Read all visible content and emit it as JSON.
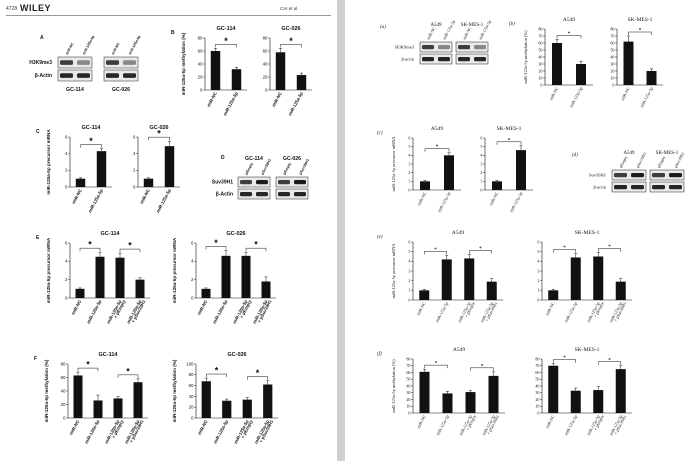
{
  "left_page": {
    "page_number": "4728",
    "publisher": "WILEY",
    "running_head": "CAI et al."
  },
  "colors": {
    "bar": "#111111",
    "page": "#ffffff",
    "gutter": "#d0d0d0"
  },
  "chart_data": [
    {
      "id": "L-C1",
      "type": "bar",
      "panel": "C",
      "title": "GC-114",
      "ylabel": "miR-125a-5p precursor mRNA",
      "categories": [
        "miR-NC",
        "miR-125a-5p"
      ],
      "values": [
        1.0,
        4.3
      ],
      "errors": [
        0.1,
        0.3
      ],
      "ylim": [
        0,
        6
      ],
      "yticks": [
        0,
        2,
        4,
        6
      ],
      "sig": [
        [
          "miR-NC",
          "miR-125a-5p",
          "*"
        ]
      ]
    },
    {
      "id": "L-C2",
      "type": "bar",
      "panel": "",
      "title": "GC-026",
      "ylabel": "",
      "categories": [
        "miR-NC",
        "miR-125a-5p"
      ],
      "values": [
        1.0,
        4.9
      ],
      "errors": [
        0.1,
        0.6
      ],
      "ylim": [
        0,
        6
      ],
      "yticks": [
        0,
        2,
        4,
        6
      ],
      "sig": [
        [
          "miR-NC",
          "miR-125a-5p",
          "*"
        ]
      ]
    },
    {
      "id": "L-B1",
      "type": "bar",
      "panel": "B",
      "title": "GC-114",
      "ylabel": "miR-125a-5p methylation (%)",
      "categories": [
        "miR-NC",
        "miR-125a-5p"
      ],
      "values": [
        60,
        32
      ],
      "errors": [
        4,
        3
      ],
      "ylim": [
        0,
        80
      ],
      "yticks": [
        0,
        20,
        40,
        60,
        80
      ],
      "sig": [
        [
          "miR-NC",
          "miR-125a-5p",
          "*"
        ]
      ]
    },
    {
      "id": "L-B2",
      "type": "bar",
      "panel": "",
      "title": "GC-026",
      "ylabel": "",
      "categories": [
        "miR-NC",
        "miR-125a-5p"
      ],
      "values": [
        58,
        23
      ],
      "errors": [
        6,
        3
      ],
      "ylim": [
        0,
        80
      ],
      "yticks": [
        0,
        20,
        40,
        60,
        80
      ],
      "sig": [
        [
          "miR-NC",
          "miR-125a-5p",
          "*"
        ]
      ]
    },
    {
      "id": "L-E1",
      "type": "bar",
      "panel": "E",
      "title": "GC-114",
      "ylabel": "miR-125a-5p precursor mRNA",
      "categories": [
        "miR-NC",
        "miR-125a-5p",
        "miR-125a-5p + pEmpty",
        "miR-125a-5p + pSuv39H1"
      ],
      "values": [
        1.0,
        4.5,
        4.4,
        2.0
      ],
      "errors": [
        0.1,
        0.5,
        0.5,
        0.2
      ],
      "ylim": [
        0,
        6
      ],
      "yticks": [
        0,
        2,
        4,
        6
      ],
      "sig": [
        [
          "miR-NC",
          "miR-125a-5p",
          "*"
        ],
        [
          "miR-125a-5p + pEmpty",
          "miR-125a-5p + pSuv39H1",
          "*"
        ]
      ]
    },
    {
      "id": "L-E2",
      "type": "bar",
      "panel": "",
      "title": "GC-026",
      "ylabel": "miR-125a-5p precursor mRNA",
      "categories": [
        "miR-NC",
        "miR-125a-5p",
        "miR-125a-5p + pEmpty",
        "miR-125a-5p + pSuv39H1"
      ],
      "values": [
        1.0,
        4.6,
        4.6,
        1.8
      ],
      "errors": [
        0.1,
        0.6,
        0.4,
        0.5
      ],
      "ylim": [
        0,
        6
      ],
      "yticks": [
        0,
        2,
        4,
        6
      ],
      "sig": [
        [
          "miR-NC",
          "miR-125a-5p",
          "*"
        ],
        [
          "miR-125a-5p + pEmpty",
          "miR-125a-5p + pSuv39H1",
          "*"
        ]
      ]
    },
    {
      "id": "L-F1",
      "type": "bar",
      "panel": "F",
      "title": "GC-114",
      "ylabel": "miR-125a-5p methylation (%)",
      "categories": [
        "miR-NC",
        "miR-125a-5p",
        "miR-125a-5p + pEmpty",
        "miR-125a-5p + pSuv39H1"
      ],
      "values": [
        63,
        26,
        29,
        53
      ],
      "errors": [
        5,
        8,
        3,
        5
      ],
      "ylim": [
        0,
        80
      ],
      "yticks": [
        0,
        20,
        40,
        60,
        80
      ],
      "sig": [
        [
          "miR-NC",
          "miR-125a-5p",
          "*"
        ],
        [
          "miR-125a-5p + pEmpty",
          "miR-125a-5p + pSuv39H1",
          "*"
        ]
      ]
    },
    {
      "id": "L-F2",
      "type": "bar",
      "panel": "",
      "title": "GC-026",
      "ylabel": "miR-125a-5p methylation (%)",
      "categories": [
        "miR-NC",
        "miR-125a-5p",
        "miR-125a-5p + pEmpty",
        "miR-125a-5p + pSuv39H1"
      ],
      "values": [
        68,
        32,
        34,
        62
      ],
      "errors": [
        6,
        3,
        4,
        7
      ],
      "ylim": [
        0,
        100
      ],
      "yticks": [
        0,
        20,
        40,
        60,
        80,
        100
      ],
      "sig": [
        [
          "miR-NC",
          "miR-125a-5p",
          "*"
        ],
        [
          "miR-125a-5p + pEmpty",
          "miR-125a-5p + pSuv39H1",
          "*"
        ]
      ]
    },
    {
      "id": "R-b1",
      "type": "bar",
      "panel": "(b)",
      "title": "A549",
      "ylabel": "miR-125a-5p methylation (%)",
      "categories": [
        "miR-NC",
        "miR-125a-5p"
      ],
      "values": [
        60,
        30
      ],
      "errors": [
        5,
        4
      ],
      "ylim": [
        0,
        80
      ],
      "yticks": [
        0,
        10,
        20,
        30,
        40,
        50,
        60,
        70,
        80
      ],
      "sig": [
        [
          "miR-NC",
          "miR-125a-5p",
          "*"
        ]
      ]
    },
    {
      "id": "R-b2",
      "type": "bar",
      "panel": "",
      "title": "SK-MES-1",
      "ylabel": "",
      "categories": [
        "miR-NC",
        "miR-125a-5p"
      ],
      "values": [
        62,
        20
      ],
      "errors": [
        8,
        3
      ],
      "ylim": [
        0,
        80
      ],
      "yticks": [
        0,
        10,
        20,
        30,
        40,
        50,
        60,
        70,
        80
      ],
      "sig": [
        [
          "miR-NC",
          "miR-125a-5p",
          "*"
        ]
      ]
    },
    {
      "id": "R-c1",
      "type": "bar",
      "panel": "(c)",
      "title": "A549",
      "ylabel": "miR-125a-5p precursor mRNA",
      "categories": [
        "miR-NC",
        "miR-125a-5p"
      ],
      "values": [
        1.0,
        4.0
      ],
      "errors": [
        0.1,
        0.3
      ],
      "ylim": [
        0,
        6
      ],
      "yticks": [
        0,
        1,
        2,
        3,
        4,
        5,
        6
      ],
      "sig": [
        [
          "miR-NC",
          "miR-125a-5p",
          "*"
        ]
      ]
    },
    {
      "id": "R-c2",
      "type": "bar",
      "panel": "",
      "title": "SK-MES-1",
      "ylabel": "",
      "categories": [
        "miR-NC",
        "miR-125a-5p"
      ],
      "values": [
        1.0,
        4.6
      ],
      "errors": [
        0.1,
        0.5
      ],
      "ylim": [
        0,
        6
      ],
      "yticks": [
        0,
        1,
        2,
        3,
        4,
        5,
        6
      ],
      "sig": [
        [
          "miR-NC",
          "miR-125a-5p",
          "*"
        ]
      ]
    },
    {
      "id": "R-e1",
      "type": "bar",
      "panel": "(e)",
      "title": "A549",
      "ylabel": "miR-125a-5p precursor mRNA",
      "categories": [
        "miR-NC",
        "miR-125a-5p",
        "miR-125a-5p + pEmpty",
        "miR-125a-5p + pSuv39H1"
      ],
      "values": [
        1.0,
        4.2,
        4.3,
        1.9
      ],
      "errors": [
        0.1,
        0.4,
        0.4,
        0.3
      ],
      "ylim": [
        0,
        6
      ],
      "yticks": [
        0,
        1,
        2,
        3,
        4,
        5,
        6
      ],
      "sig": [
        [
          "miR-NC",
          "miR-125a-5p",
          "*"
        ],
        [
          "miR-125a-5p + pEmpty",
          "miR-125a-5p + pSuv39H1",
          "*"
        ]
      ]
    },
    {
      "id": "R-e2",
      "type": "bar",
      "panel": "",
      "title": "SK-MES-1",
      "ylabel": "",
      "categories": [
        "miR-NC",
        "miR-125a-5p",
        "miR-125a-5p + pEmpty",
        "miR-125a-5p + pSuv39H1"
      ],
      "values": [
        1.0,
        4.4,
        4.5,
        1.9
      ],
      "errors": [
        0.1,
        0.4,
        0.4,
        0.3
      ],
      "ylim": [
        0,
        6
      ],
      "yticks": [
        0,
        1,
        2,
        3,
        4,
        5,
        6
      ],
      "sig": [
        [
          "miR-NC",
          "miR-125a-5p",
          "*"
        ],
        [
          "miR-125a-5p + pEmpty",
          "miR-125a-5p + pSuv39H1",
          "*"
        ]
      ]
    },
    {
      "id": "R-f1",
      "type": "bar",
      "panel": "(f)",
      "title": "A549",
      "ylabel": "miR-125a-5p methylation (%)",
      "categories": [
        "miR-NC",
        "miR-125a-5p",
        "miR-125a-5p + pEmpty",
        "miR-125a-5p + pSuv39H1"
      ],
      "values": [
        61,
        29,
        31,
        55
      ],
      "errors": [
        4,
        3,
        2,
        6
      ],
      "ylim": [
        0,
        80
      ],
      "yticks": [
        0,
        10,
        20,
        30,
        40,
        50,
        60,
        70,
        80
      ],
      "sig": [
        [
          "miR-NC",
          "miR-125a-5p",
          "*"
        ],
        [
          "miR-125a-5p + pEmpty",
          "miR-125a-5p + pSuv39H1",
          "*"
        ]
      ]
    },
    {
      "id": "R-f2",
      "type": "bar",
      "panel": "",
      "title": "SK-MES-1",
      "ylabel": "",
      "categories": [
        "miR-NC",
        "miR-125a-5p",
        "miR-125a-5p + pEmpty",
        "miR-125a-5p + pSuv39H1"
      ],
      "values": [
        70,
        33,
        34,
        65
      ],
      "errors": [
        3,
        4,
        5,
        5
      ],
      "ylim": [
        0,
        80
      ],
      "yticks": [
        0,
        10,
        20,
        30,
        40,
        50,
        60,
        70,
        80
      ],
      "sig": [
        [
          "miR-NC",
          "miR-125a-5p",
          "*"
        ],
        [
          "miR-125a-5p + pEmpty",
          "miR-125a-5p + pSuv39H1",
          "*"
        ]
      ]
    }
  ],
  "blots": [
    {
      "id": "L-A",
      "panel": "A",
      "rows": [
        "H3K9me3",
        "β-Actin"
      ],
      "groups": [
        {
          "name": "GC-114",
          "lanes": [
            "miR-NC",
            "miR-125a-5p"
          ]
        },
        {
          "name": "GC-026",
          "lanes": [
            "miR-NC",
            "miR-125a-5p"
          ]
        }
      ]
    },
    {
      "id": "L-D",
      "panel": "D",
      "rows": [
        "Suv39H1",
        "β-Actin"
      ],
      "groups": [
        {
          "name": "GC-114",
          "lanes": [
            "pEmpty",
            "pSuv39H1"
          ]
        },
        {
          "name": "GC-026",
          "lanes": [
            "pEmpty",
            "pSuv39H1"
          ]
        }
      ]
    },
    {
      "id": "R-a",
      "panel": "(a)",
      "rows": [
        "H3K9me3",
        "β-actin"
      ],
      "groups": [
        {
          "name": "A549",
          "lanes": [
            "miR-NC",
            "miR-125a-5p"
          ]
        },
        {
          "name": "SK-MES-1",
          "lanes": [
            "miR-NC",
            "miR-125a-5p"
          ]
        }
      ]
    },
    {
      "id": "R-d",
      "panel": "(d)",
      "rows": [
        "Suv39H1",
        "β-actin"
      ],
      "groups": [
        {
          "name": "A549",
          "lanes": [
            "pEmpty",
            "pSuv39H1"
          ]
        },
        {
          "name": "SK-MES-1",
          "lanes": [
            "pEmpty",
            "pSuv39H1"
          ]
        }
      ]
    }
  ]
}
